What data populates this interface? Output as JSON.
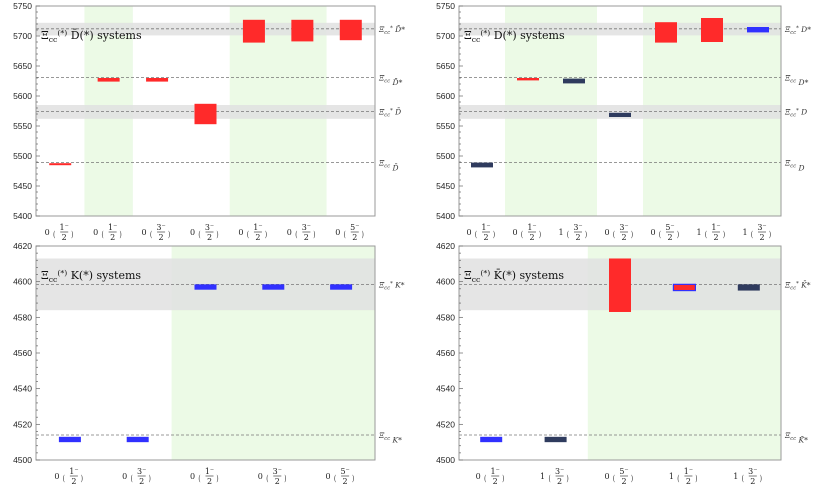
{
  "colors": {
    "red": "#ff2a2a",
    "blue": "#3030ff",
    "navy": "#2f3b5e",
    "band": "#e1e1e1",
    "green": "#ecfae6",
    "frame": "#9a9a9a",
    "dashed": "#777777"
  },
  "chart_data": [
    {
      "type": "bar",
      "title": "Ξcc(*) D̄(*) systems",
      "ylim": [
        5400,
        5750
      ],
      "yticks": [
        5400,
        5450,
        5500,
        5550,
        5600,
        5650,
        5700,
        5750
      ],
      "grid": false,
      "categories": [
        "0 (1/2⁻)",
        "0 (1/2⁻)",
        "0 (3/2⁻)",
        "0 (3/2⁻)",
        "0 (1/2⁻)",
        "0 (3/2⁻)",
        "0 (5/2⁻)"
      ],
      "green_regions": [
        [
          2,
          3
        ],
        [
          5,
          7
        ]
      ],
      "thresholds": [
        {
          "label": "Ξcc* D̄*",
          "value": 5712
        },
        {
          "label": "Ξcc D̄*",
          "value": 5631
        },
        {
          "label": "Ξcc* D̄",
          "value": 5574
        },
        {
          "label": "Ξcc D̄",
          "value": 5489
        }
      ],
      "bands": [
        [
          5701,
          5722
        ],
        [
          5562,
          5585
        ]
      ],
      "series": [
        {
          "values": [
            {
              "lo": 5485,
              "hi": 5488,
              "color": "red"
            },
            {
              "lo": 5624,
              "hi": 5630,
              "color": "red"
            },
            {
              "lo": 5624,
              "hi": 5630,
              "color": "red"
            },
            {
              "lo": 5553,
              "hi": 5587,
              "color": "red"
            },
            {
              "lo": 5689,
              "hi": 5727,
              "color": "red"
            },
            {
              "lo": 5691,
              "hi": 5727,
              "color": "red"
            },
            {
              "lo": 5693,
              "hi": 5727,
              "color": "red"
            }
          ]
        }
      ]
    },
    {
      "type": "bar",
      "title": "Ξcc(*) D(*) systems",
      "ylim": [
        5400,
        5750
      ],
      "yticks": [
        5400,
        5450,
        5500,
        5550,
        5600,
        5650,
        5700,
        5750
      ],
      "grid": false,
      "categories": [
        "0 (1/2⁻)",
        "0 (1/2⁻)",
        "1 (3/2⁻)",
        "0 (3/2⁻)",
        "0 (5/2⁻)",
        "1 (1/2⁻)",
        "1 (3/2⁻)"
      ],
      "green_regions": [
        [
          2,
          4
        ],
        [
          5,
          8
        ]
      ],
      "thresholds": [
        {
          "label": "Ξcc* D*",
          "value": 5712
        },
        {
          "label": "Ξcc D*",
          "value": 5631
        },
        {
          "label": "Ξcc* D",
          "value": 5574
        },
        {
          "label": "Ξcc D",
          "value": 5489
        }
      ],
      "bands": [
        [
          5701,
          5722
        ],
        [
          5562,
          5585
        ]
      ],
      "series": [
        {
          "values": [
            {
              "lo": 5481,
              "hi": 5489,
              "color": "navy"
            },
            {
              "lo": 5626,
              "hi": 5630,
              "color": "red"
            },
            {
              "lo": 5621,
              "hi": 5629,
              "color": "navy"
            },
            {
              "lo": 5565,
              "hi": 5572,
              "color": "navy"
            },
            {
              "lo": 5689,
              "hi": 5723,
              "color": "red"
            },
            {
              "lo": 5690,
              "hi": 5730,
              "color": "red"
            },
            {
              "lo": 5706,
              "hi": 5715,
              "color": "blue"
            }
          ]
        }
      ]
    },
    {
      "type": "bar",
      "title": "Ξcc(*) K(*) systems",
      "ylim": [
        4500,
        4620
      ],
      "yticks": [
        4500,
        4520,
        4540,
        4560,
        4580,
        4600,
        4620
      ],
      "grid": false,
      "categories": [
        "0 (1/2⁻)",
        "0 (3/2⁻)",
        "0 (1/2⁻)",
        "0 (3/2⁻)",
        "0 (5/2⁻)"
      ],
      "green_regions": [
        [
          3,
          6
        ]
      ],
      "thresholds": [
        {
          "label": "Ξcc* K*",
          "value": 4598.5
        },
        {
          "label": "Ξcc K*",
          "value": 4514
        }
      ],
      "bands": [
        [
          4584,
          4613
        ]
      ],
      "series": [
        {
          "values": [
            {
              "lo": 4510,
              "hi": 4513,
              "color": "blue"
            },
            {
              "lo": 4510,
              "hi": 4513,
              "color": "blue"
            },
            {
              "lo": 4595.5,
              "hi": 4598.5,
              "color": "blue"
            },
            {
              "lo": 4595.5,
              "hi": 4598.5,
              "color": "blue"
            },
            {
              "lo": 4595.5,
              "hi": 4598.5,
              "color": "blue"
            }
          ]
        }
      ]
    },
    {
      "type": "bar",
      "title": "Ξcc(*) K̄(*) systems",
      "ylim": [
        4500,
        4620
      ],
      "yticks": [
        4500,
        4520,
        4540,
        4560,
        4580,
        4600,
        4620
      ],
      "grid": false,
      "categories": [
        "0 (1/2⁻)",
        "1 (3/2⁻)",
        "0 (5/2⁻)",
        "1 (1/2⁻)",
        "1 (3/2⁻)"
      ],
      "green_regions": [
        [
          3,
          6
        ]
      ],
      "thresholds": [
        {
          "label": "Ξcc* K̄*",
          "value": 4598.5
        },
        {
          "label": "Ξcc K̄*",
          "value": 4514
        }
      ],
      "bands": [
        [
          4584,
          4613
        ]
      ],
      "series": [
        {
          "values": [
            {
              "lo": 4510,
              "hi": 4513,
              "color": "blue"
            },
            {
              "lo": 4510,
              "hi": 4513,
              "color": "navy"
            },
            {
              "lo": 4583,
              "hi": 4613,
              "color": "red"
            },
            {
              "lo": 4595,
              "hi": 4598.5,
              "color": "red",
              "edge": "blue"
            },
            {
              "lo": 4595,
              "hi": 4598.5,
              "color": "navy"
            }
          ]
        }
      ]
    }
  ]
}
